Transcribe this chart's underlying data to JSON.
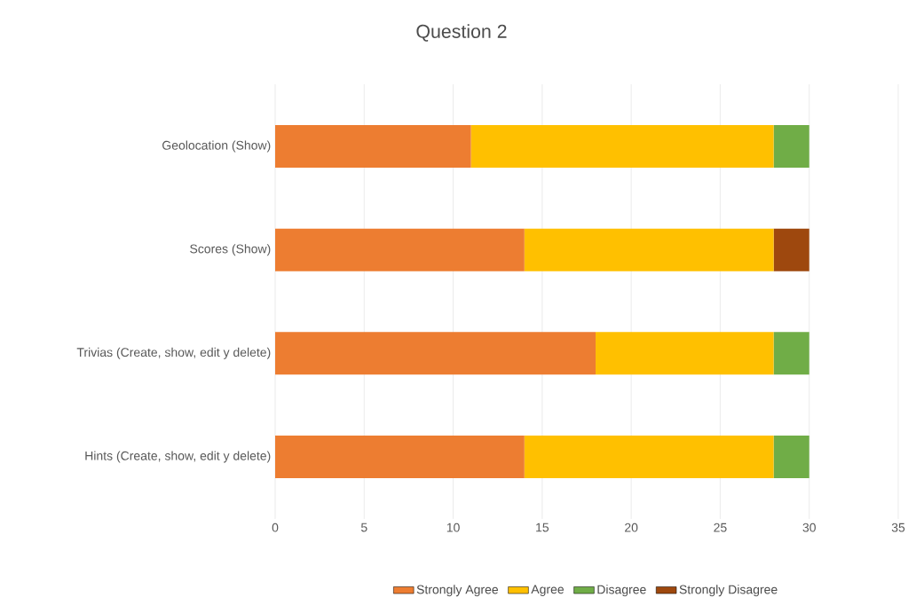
{
  "chart_data": {
    "type": "bar",
    "title": "Question 2",
    "orientation": "horizontal",
    "stacked": true,
    "categories": [
      "Geolocation (Show)",
      "Scores (Show)",
      "Trivias (Create, show, edit y delete)",
      "Hints (Create, show, edit y delete)"
    ],
    "series": [
      {
        "name": "Strongly Agree",
        "color": "#ed7d31",
        "values": [
          11,
          14,
          18,
          14
        ]
      },
      {
        "name": "Agree",
        "color": "#ffc000",
        "values": [
          17,
          14,
          10,
          14
        ]
      },
      {
        "name": "Disagree",
        "color": "#70ad47",
        "values": [
          2,
          0,
          2,
          2
        ]
      },
      {
        "name": "Strongly Disagree",
        "color": "#9e480e",
        "values": [
          0,
          2,
          0,
          0
        ]
      }
    ],
    "xlim": [
      0,
      35
    ],
    "xticks": [
      0,
      5,
      10,
      15,
      20,
      25,
      30,
      35
    ],
    "grid": "x",
    "legend": "bottom"
  }
}
